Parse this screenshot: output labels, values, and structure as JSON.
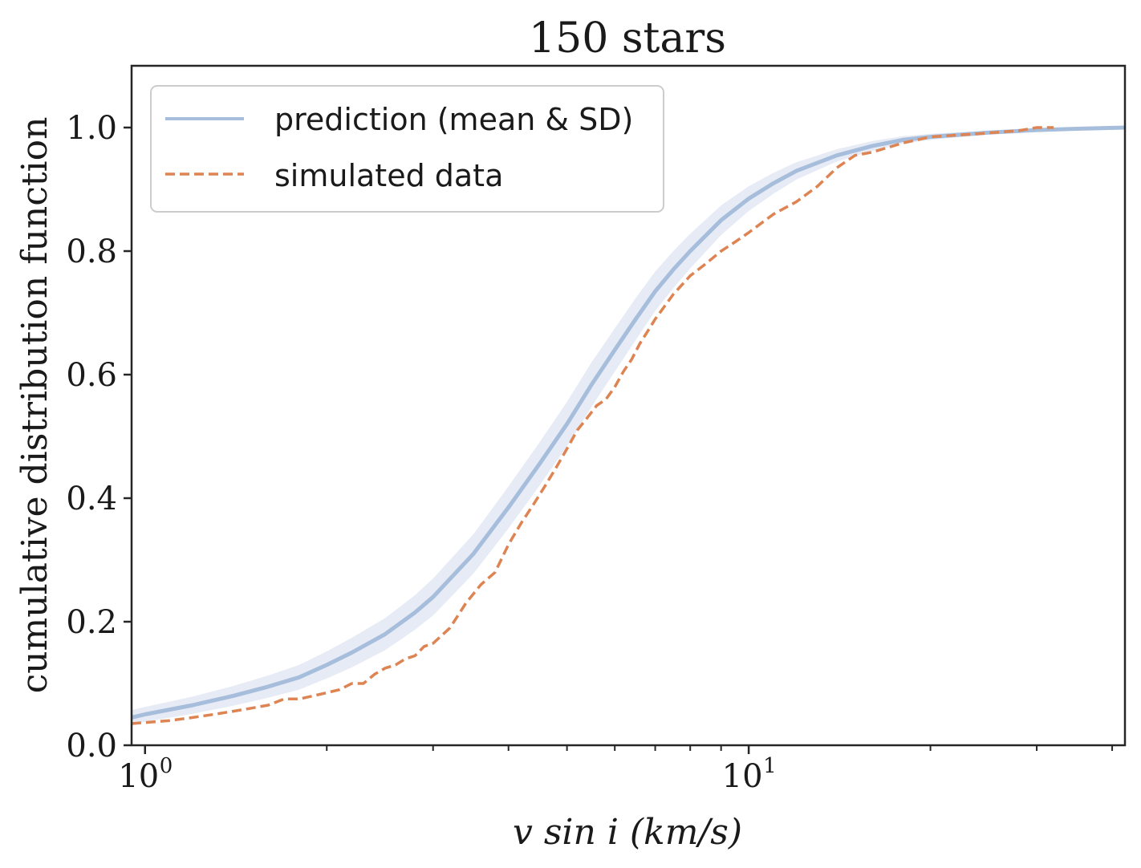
{
  "chart_data": {
    "type": "line",
    "title": "150 stars",
    "xlabel": "v sin i (km/s)",
    "ylabel": "cumulative distribution function",
    "xscale": "log",
    "xlim": [
      0.95,
      42
    ],
    "ylim": [
      0.0,
      1.1
    ],
    "y_ticks": [
      0.0,
      0.2,
      0.4,
      0.6,
      0.8,
      1.0
    ],
    "y_tick_labels": [
      "0.0",
      "0.2",
      "0.4",
      "0.6",
      "0.8",
      "1.0"
    ],
    "x_major_ticks": [
      1,
      10
    ],
    "x_tick_labels": [
      {
        "base": "10",
        "exp": "0"
      },
      {
        "base": "10",
        "exp": "1"
      }
    ],
    "x_minor_ticks": [
      2,
      3,
      4,
      5,
      6,
      7,
      8,
      9,
      20,
      30,
      40
    ],
    "grid": false,
    "legend_position": "top-left",
    "series": [
      {
        "name": "prediction (mean & SD)",
        "color": "#a6bddb",
        "band_color": "#e6ebf5",
        "style": "solid",
        "x": [
          0.95,
          1.0,
          1.2,
          1.4,
          1.6,
          1.8,
          2.0,
          2.2,
          2.5,
          2.8,
          3.0,
          3.5,
          4.0,
          4.5,
          5.0,
          5.5,
          6.0,
          6.5,
          7.0,
          7.5,
          8.0,
          9.0,
          10.0,
          11.0,
          12.0,
          14.0,
          16.0,
          18.0,
          20.0,
          25.0,
          30.0,
          35.0,
          42.0
        ],
        "y": [
          0.045,
          0.05,
          0.065,
          0.08,
          0.095,
          0.11,
          0.13,
          0.15,
          0.18,
          0.215,
          0.24,
          0.31,
          0.385,
          0.455,
          0.52,
          0.585,
          0.64,
          0.69,
          0.735,
          0.77,
          0.8,
          0.85,
          0.885,
          0.91,
          0.93,
          0.955,
          0.97,
          0.98,
          0.985,
          0.992,
          0.996,
          0.998,
          1.0
        ],
        "y_sd": [
          0.012,
          0.012,
          0.014,
          0.016,
          0.018,
          0.02,
          0.022,
          0.024,
          0.026,
          0.028,
          0.03,
          0.032,
          0.034,
          0.035,
          0.036,
          0.036,
          0.035,
          0.034,
          0.032,
          0.03,
          0.028,
          0.024,
          0.02,
          0.017,
          0.014,
          0.01,
          0.008,
          0.006,
          0.005,
          0.003,
          0.002,
          0.001,
          0.0
        ]
      },
      {
        "name": "simulated data",
        "color": "#dd8452",
        "style": "dashed",
        "x": [
          0.95,
          1.1,
          1.2,
          1.3,
          1.4,
          1.5,
          1.6,
          1.7,
          1.8,
          1.9,
          2.0,
          2.1,
          2.2,
          2.3,
          2.4,
          2.5,
          2.6,
          2.7,
          2.8,
          2.9,
          3.0,
          3.2,
          3.4,
          3.6,
          3.8,
          4.0,
          4.2,
          4.4,
          4.6,
          4.8,
          5.0,
          5.2,
          5.4,
          5.6,
          5.8,
          6.0,
          6.2,
          6.4,
          6.6,
          6.8,
          7.0,
          7.5,
          8.0,
          8.5,
          9.0,
          9.5,
          10.0,
          11.0,
          12.0,
          13.0,
          14.0,
          15.0,
          16.0,
          18.0,
          20.0,
          24.0,
          28.0,
          30.0,
          32.0
        ],
        "y": [
          0.035,
          0.04,
          0.045,
          0.05,
          0.055,
          0.06,
          0.065,
          0.075,
          0.075,
          0.08,
          0.085,
          0.09,
          0.1,
          0.1,
          0.115,
          0.125,
          0.13,
          0.14,
          0.145,
          0.16,
          0.165,
          0.19,
          0.23,
          0.26,
          0.28,
          0.325,
          0.36,
          0.39,
          0.42,
          0.45,
          0.48,
          0.51,
          0.53,
          0.55,
          0.56,
          0.58,
          0.605,
          0.625,
          0.65,
          0.67,
          0.69,
          0.73,
          0.76,
          0.78,
          0.8,
          0.815,
          0.83,
          0.86,
          0.88,
          0.905,
          0.935,
          0.955,
          0.96,
          0.975,
          0.985,
          0.99,
          0.995,
          1.0,
          1.0
        ]
      }
    ]
  }
}
